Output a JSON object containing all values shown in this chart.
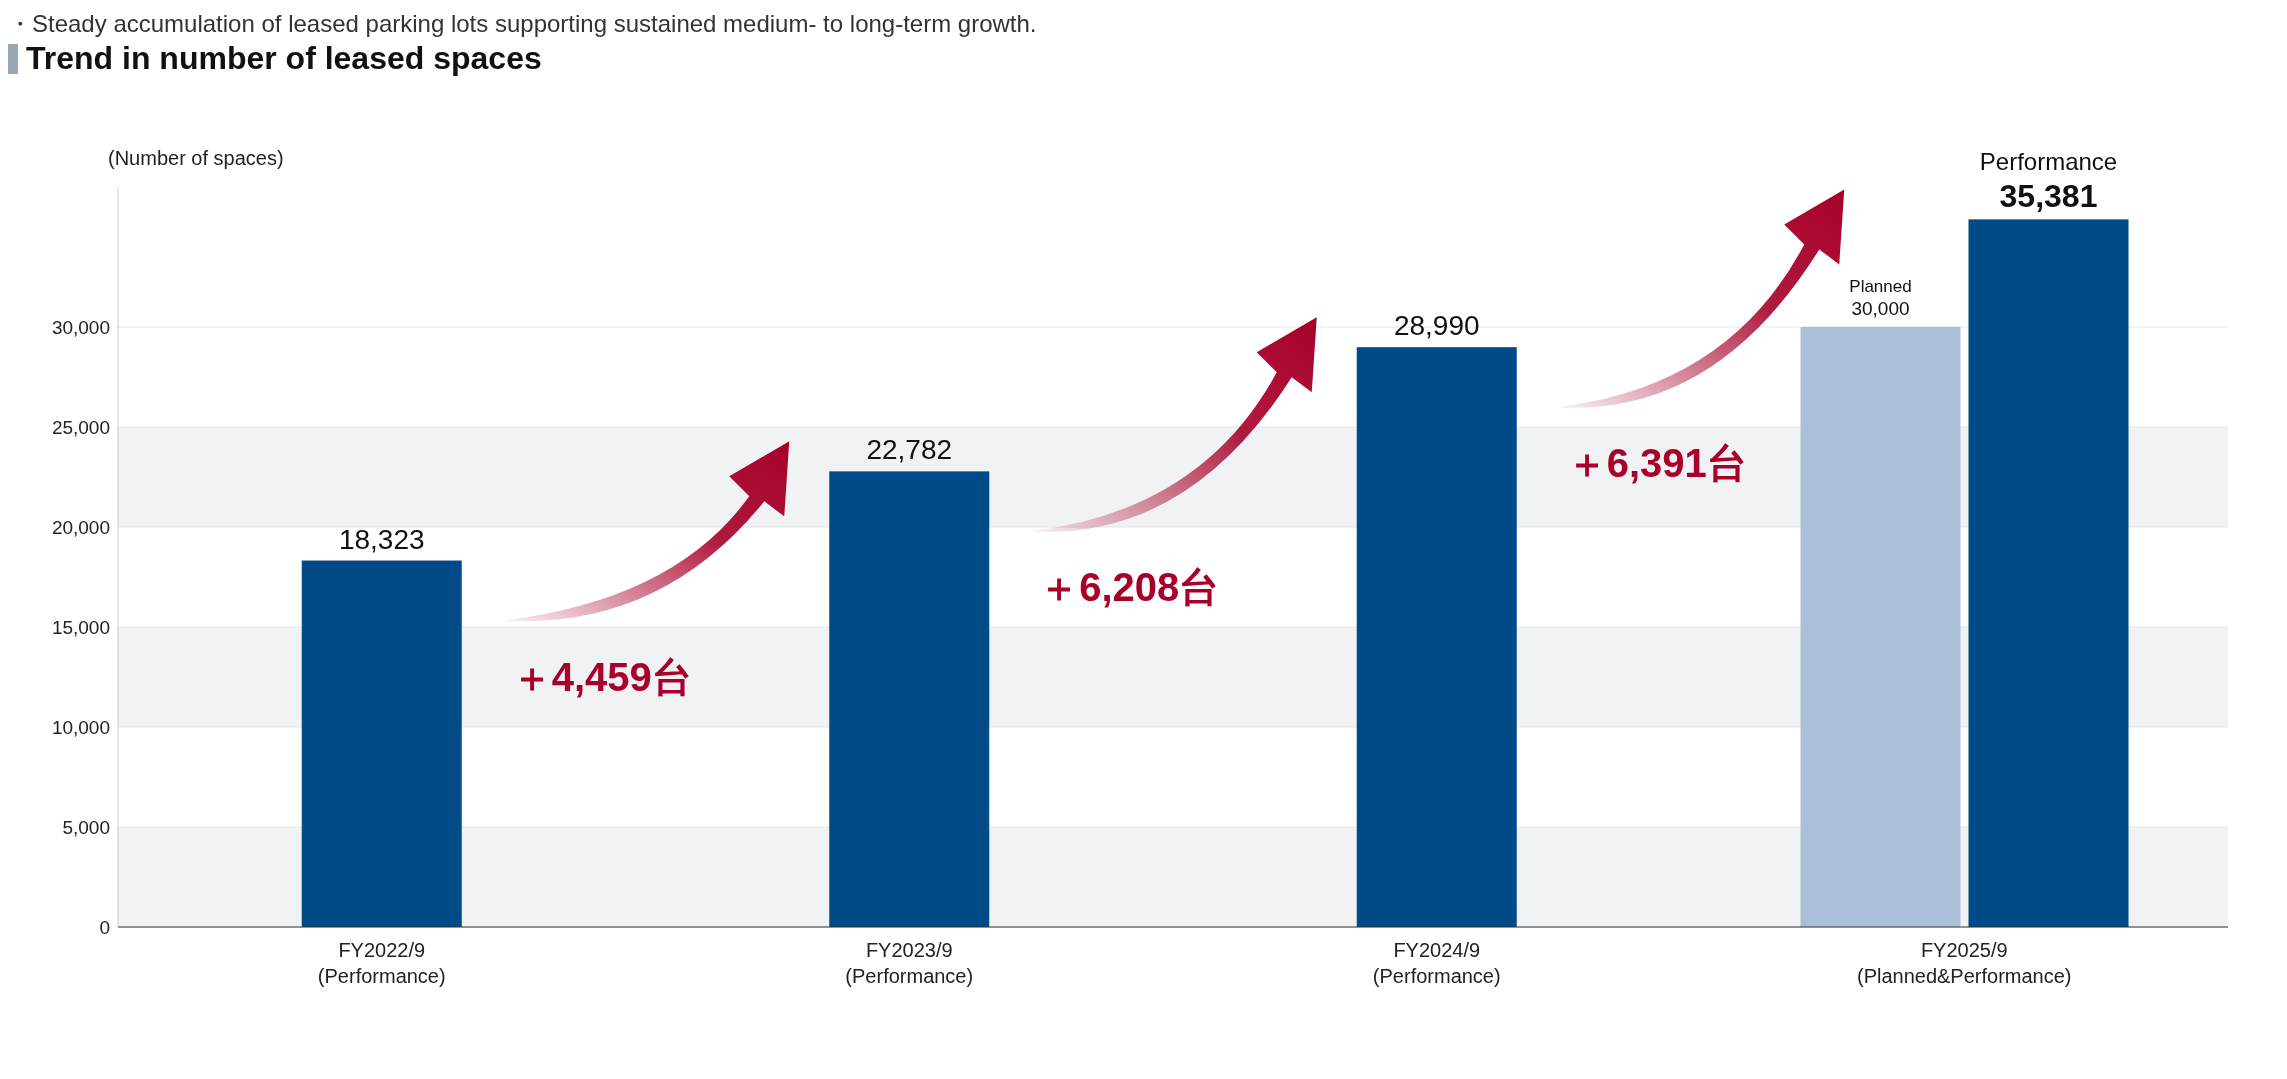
{
  "chart_data": {
    "type": "bar",
    "title": "Trend in number of leased spaces",
    "ylabel": "(Number of spaces)",
    "categories": [
      "FY2022/9\n(Performance)",
      "FY2023/9\n(Performance)",
      "FY2024/9\n(Performance)",
      "FY2025/9\n(Planned&Performance)"
    ],
    "series": [
      {
        "name": "Planned",
        "color": "#a9c0d8",
        "values": [
          null,
          null,
          null,
          30000
        ],
        "value_labels": [
          null,
          null,
          null,
          "30,000"
        ]
      },
      {
        "name": "Performance",
        "color": "#004a88",
        "values": [
          18323,
          22782,
          28990,
          35381
        ],
        "value_labels": [
          "18,323",
          "22,782",
          "28,990",
          "35,381"
        ]
      }
    ],
    "ylim": [
      0,
      37000
    ],
    "yticks": [
      0,
      {
        "value": 5000,
        "label": "5,000"
      },
      {
        "value": 10000,
        "label": "10,000"
      },
      {
        "value": 15000,
        "label": "15,000"
      },
      {
        "value": 20000,
        "label": "20,000"
      },
      {
        "value": 25000,
        "label": "25,000"
      },
      {
        "value": 30000,
        "label": "30,000"
      }
    ],
    "grid": "y",
    "annotations": [
      "・Steady accumulation of leased parking lots supporting sustained medium- to long-term growth.",
      "＋4,459台",
      "＋6,208台",
      "＋6,391台"
    ]
  }
}
